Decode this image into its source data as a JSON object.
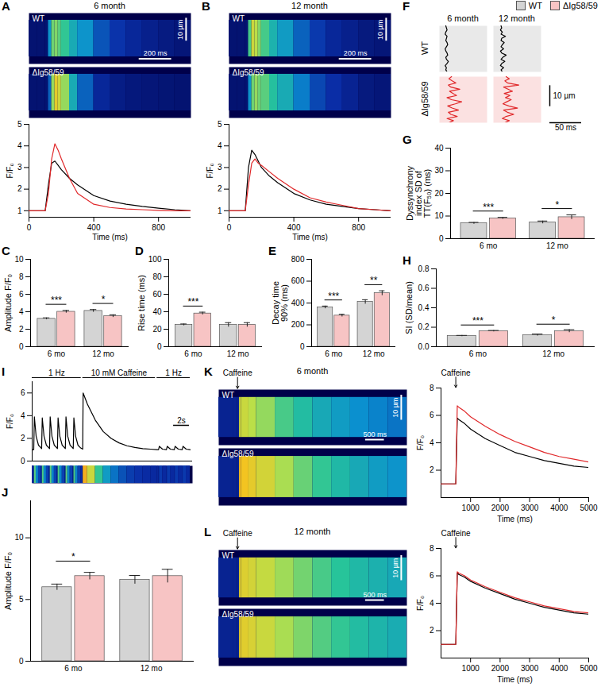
{
  "chart_data": [
    {
      "panel": "A",
      "type": "linescan",
      "title": "6 month",
      "scale_bars": {
        "x": "200 ms",
        "y": "10 µm"
      },
      "x_label": "Time (ms)",
      "y_label": "F/F₀",
      "xlim": [
        0,
        1000
      ],
      "xticks": [
        0,
        400,
        800
      ],
      "ylim": [
        0.7,
        5
      ],
      "yticks": [
        1,
        2,
        3,
        4,
        5
      ],
      "x": [
        0,
        50,
        100,
        120,
        140,
        160,
        180,
        200,
        250,
        300,
        400,
        500,
        600,
        700,
        800,
        900,
        1000
      ],
      "series": [
        {
          "name": "WT",
          "color": "#000000",
          "values": [
            1,
            1,
            1,
            2.2,
            3.2,
            3.3,
            3.1,
            2.9,
            2.5,
            2.2,
            1.7,
            1.45,
            1.3,
            1.2,
            1.12,
            1.05,
            1.0
          ]
        },
        {
          "name": "ΔIg58/59",
          "color": "#e0282a",
          "values": [
            1,
            1,
            1,
            1.8,
            3.4,
            4.1,
            3.8,
            3.4,
            2.5,
            1.8,
            1.3,
            1.15,
            1.08,
            1.05,
            1.02,
            1.0,
            1.0
          ]
        }
      ]
    },
    {
      "panel": "B",
      "type": "linescan",
      "title": "12 month",
      "scale_bars": {
        "x": "200 ms",
        "y": "10 µm"
      },
      "x_label": "Time (ms)",
      "y_label": "F/F₀",
      "xlim": [
        0,
        1000
      ],
      "xticks": [
        0,
        400,
        800
      ],
      "ylim": [
        0.7,
        5
      ],
      "yticks": [
        1,
        2,
        3,
        4,
        5
      ],
      "x": [
        0,
        50,
        100,
        120,
        140,
        160,
        180,
        200,
        250,
        300,
        400,
        500,
        600,
        700,
        800,
        900,
        1000
      ],
      "series": [
        {
          "name": "WT",
          "color": "#000000",
          "values": [
            1,
            1,
            1,
            3.0,
            3.8,
            3.6,
            3.3,
            3.0,
            2.6,
            2.3,
            1.8,
            1.5,
            1.3,
            1.2,
            1.1,
            1.05,
            1.0
          ]
        },
        {
          "name": "ΔIg58/59",
          "color": "#e0282a",
          "values": [
            1,
            1,
            1,
            2.2,
            3.2,
            3.4,
            3.2,
            3.1,
            2.8,
            2.5,
            2.0,
            1.6,
            1.4,
            1.25,
            1.1,
            1.05,
            1.0
          ]
        }
      ]
    },
    {
      "panel": "C",
      "type": "bar",
      "y_label": "Amplitude F/F₀",
      "categories": [
        "6 mo",
        "12 mo"
      ],
      "ylim": [
        0,
        10
      ],
      "yticks": [
        0,
        2,
        4,
        6,
        8,
        10
      ],
      "series": [
        {
          "name": "WT",
          "color": "#d4d4d4",
          "values": [
            3.2,
            4.1
          ],
          "errors": [
            0.1,
            0.15
          ]
        },
        {
          "name": "ΔIg58/59",
          "color": "#f7c4c4",
          "values": [
            4.0,
            3.5
          ],
          "errors": [
            0.15,
            0.15
          ]
        }
      ],
      "significance": [
        "***",
        "*"
      ]
    },
    {
      "panel": "D",
      "type": "bar",
      "y_label": "Rise time (ms)",
      "categories": [
        "6 mo",
        "12 mo"
      ],
      "ylim": [
        0,
        100
      ],
      "yticks": [
        0,
        20,
        40,
        60,
        80,
        100
      ],
      "series": [
        {
          "name": "WT",
          "color": "#d4d4d4",
          "values": [
            25,
            25
          ],
          "errors": [
            1,
            2.5
          ]
        },
        {
          "name": "ΔIg58/59",
          "color": "#f7c4c4",
          "values": [
            38,
            25
          ],
          "errors": [
            1.5,
            2.5
          ]
        }
      ],
      "significance": [
        "***",
        null
      ]
    },
    {
      "panel": "E",
      "type": "bar",
      "y_label": "Decay time 90% (ms)",
      "categories": [
        "6 mo",
        "12 mo"
      ],
      "ylim": [
        0,
        800
      ],
      "yticks": [
        0,
        200,
        400,
        600,
        800
      ],
      "series": [
        {
          "name": "WT",
          "color": "#d4d4d4",
          "values": [
            360,
            410
          ],
          "errors": [
            12,
            20
          ]
        },
        {
          "name": "ΔIg58/59",
          "color": "#f7c4c4",
          "values": [
            285,
            490
          ],
          "errors": [
            12,
            22
          ]
        }
      ],
      "significance": [
        "***",
        "**"
      ]
    },
    {
      "panel": "F",
      "type": "line",
      "columns": [
        "6 month",
        "12 month"
      ],
      "tick_labels": false,
      "scale_bars": {
        "x": "50 ms",
        "y": "10 µm"
      },
      "xlim": [
        0,
        75
      ],
      "ylim": [
        0,
        22
      ],
      "y": [
        0,
        1,
        2,
        3,
        4,
        5,
        6,
        7,
        8,
        9,
        10,
        11,
        12,
        13,
        14,
        15,
        16,
        17,
        18,
        19,
        20,
        21,
        22
      ],
      "series": [
        {
          "name": "WT",
          "color": "#000000",
          "values": [
            [
              12,
              10,
              11,
              9,
              12,
              14,
              11,
              10,
              13,
              12,
              10,
              9,
              11,
              13,
              12,
              10,
              11,
              12,
              9,
              10,
              12,
              11,
              10
            ],
            [
              14,
              12,
              16,
              11,
              13,
              18,
              12,
              15,
              20,
              13,
              11,
              16,
              12,
              14,
              17,
              12,
              13,
              19,
              12,
              14,
              11,
              13,
              12
            ]
          ]
        },
        {
          "name": "ΔIg58/59",
          "color": "#e0282a",
          "values": [
            [
              15,
              22,
              12,
              28,
              18,
              14,
              30,
              20,
              13,
              25,
              35,
              19,
              12,
              27,
              21,
              16,
              32,
              18,
              14,
              26,
              20,
              15,
              19
            ],
            [
              18,
              25,
              14,
              20,
              32,
              22,
              16,
              38,
              24,
              15,
              21,
              28,
              19,
              26,
              17,
              30,
              23,
              16,
              40,
              22,
              18,
              25,
              20
            ]
          ]
        }
      ]
    },
    {
      "panel": "G",
      "type": "bar",
      "legend": "top-right",
      "y_label": "Dyssynchrony index SD of TT(F₅₀) (ms)",
      "categories": [
        "6 mo",
        "12 mo"
      ],
      "ylim": [
        0,
        40
      ],
      "yticks": [
        0,
        10,
        20,
        30,
        40
      ],
      "series": [
        {
          "name": "WT",
          "color": "#d4d4d4",
          "values": [
            6.8,
            7.2
          ],
          "errors": [
            0.4,
            0.6
          ]
        },
        {
          "name": "ΔIg58/59",
          "color": "#f7c4c4",
          "values": [
            9.0,
            9.5
          ],
          "errors": [
            0.4,
            1.0
          ]
        }
      ],
      "significance": [
        "***",
        "*"
      ]
    },
    {
      "panel": "H",
      "type": "bar",
      "y_label": "SI (SD/mean)",
      "categories": [
        "6 mo",
        "12 mo"
      ],
      "ylim": [
        0,
        0.8
      ],
      "yticks": [
        {
          "value": 0,
          "label": "0.0"
        },
        0.2,
        0.4,
        0.6,
        0.8
      ],
      "series": [
        {
          "name": "WT",
          "color": "#d4d4d4",
          "values": [
            0.11,
            0.12
          ],
          "errors": [
            0.006,
            0.01
          ]
        },
        {
          "name": "ΔIg58/59",
          "color": "#f7c4c4",
          "values": [
            0.16,
            0.16
          ],
          "errors": [
            0.007,
            0.015
          ]
        }
      ],
      "significance": [
        "***",
        "*"
      ]
    },
    {
      "panel": "I",
      "type": "line",
      "tick_labels": "y",
      "y_label": "F/F₀",
      "scale_bar": "2s",
      "protocol": [
        {
          "label": "1 Hz",
          "start": 0,
          "end": 6.2
        },
        {
          "label": "10 mM Caffeine",
          "start": 6.4,
          "end": 15.6
        },
        {
          "label": "1 Hz",
          "start": 15.8,
          "end": 20
        }
      ],
      "xlim": [
        0,
        20.3
      ],
      "ylim": [
        0,
        7
      ],
      "yticks": [
        0,
        2,
        4,
        6
      ],
      "color": "#000000",
      "x": [
        0,
        0.2,
        0.28,
        0.5,
        0.8,
        1.15,
        1.2,
        1.28,
        1.5,
        1.8,
        2.15,
        2.2,
        2.28,
        2.5,
        2.8,
        3.15,
        3.2,
        3.28,
        3.5,
        3.8,
        4.15,
        4.2,
        4.28,
        4.5,
        4.8,
        5.15,
        5.2,
        5.28,
        5.5,
        5.8,
        6.15,
        6.4,
        6.45,
        7,
        8,
        9,
        10,
        11,
        12,
        13,
        14,
        15,
        15.8,
        16,
        16.1,
        16.5,
        17,
        17.1,
        17.5,
        18,
        18.1,
        18.5,
        19,
        19.1,
        19.5,
        20
      ],
      "values": [
        1.0,
        1.0,
        3.9,
        2.2,
        1.4,
        1.15,
        1.1,
        3.8,
        2.2,
        1.4,
        1.15,
        1.1,
        3.9,
        2.2,
        1.4,
        1.15,
        1.1,
        3.8,
        2.2,
        1.4,
        1.15,
        1.1,
        3.9,
        2.2,
        1.4,
        1.15,
        1.1,
        3.8,
        2.2,
        1.4,
        1.15,
        1.05,
        6.0,
        5.0,
        3.6,
        2.6,
        2.0,
        1.6,
        1.35,
        1.2,
        1.1,
        1.05,
        1.0,
        1.0,
        1.3,
        1.05,
        1.0,
        1.3,
        1.05,
        1.0,
        1.3,
        1.05,
        1.0,
        1.3,
        1.05,
        1.0
      ]
    },
    {
      "panel": "J",
      "type": "bar",
      "y_label": "Amplitude F/F₀",
      "categories": [
        "6 mo",
        "12 mo"
      ],
      "ylim": [
        0,
        13
      ],
      "yticks": [
        0,
        5,
        10
      ],
      "series": [
        {
          "name": "WT",
          "color": "#d4d4d4",
          "values": [
            6.0,
            6.6
          ],
          "errors": [
            0.25,
            0.35
          ]
        },
        {
          "name": "ΔIg58/59",
          "color": "#f7c4c4",
          "values": [
            6.9,
            6.9
          ],
          "errors": [
            0.3,
            0.55
          ]
        }
      ],
      "significance": [
        "*",
        null
      ]
    },
    {
      "panel": "K",
      "type": "linescan",
      "title": "6 month",
      "annotation": {
        "text": "Caffeine",
        "x": 500
      },
      "scale_bars": {
        "x": "500 ms",
        "y": "10 µm"
      },
      "x_label": "Time (ms)",
      "y_label": "F/F₀",
      "xlim": [
        0,
        5000
      ],
      "xticks": [
        1000,
        2000,
        3000,
        4000,
        5000
      ],
      "ylim": [
        0,
        8
      ],
      "yticks": [
        2,
        4,
        6,
        8
      ],
      "x": [
        0,
        400,
        500,
        550,
        600,
        800,
        1000,
        1500,
        2000,
        2500,
        3000,
        3500,
        4000,
        4500,
        5000
      ],
      "series": [
        {
          "name": "WT",
          "color": "#000000",
          "values": [
            1,
            1,
            1,
            5.8,
            5.7,
            5.4,
            5.0,
            4.3,
            3.8,
            3.3,
            3.0,
            2.7,
            2.5,
            2.3,
            2.2
          ]
        },
        {
          "name": "ΔIg58/59",
          "color": "#e0282a",
          "values": [
            1,
            1,
            1,
            6.7,
            6.6,
            6.3,
            5.9,
            5.2,
            4.6,
            4.1,
            3.7,
            3.3,
            3.0,
            2.8,
            2.6
          ]
        }
      ]
    },
    {
      "panel": "L",
      "type": "linescan",
      "title": "12 month",
      "annotation": {
        "text": "Caffeine",
        "x": 500
      },
      "scale_bars": {
        "x": "500 ms",
        "y": "10 µm"
      },
      "x_label": "Time (ms)",
      "y_label": "F/F₀",
      "xlim": [
        0,
        5000
      ],
      "xticks": [
        1000,
        2000,
        3000,
        4000,
        5000
      ],
      "ylim": [
        0,
        8
      ],
      "yticks": [
        2,
        4,
        6,
        8
      ],
      "x": [
        0,
        400,
        500,
        550,
        600,
        800,
        1000,
        1500,
        2000,
        2500,
        3000,
        3500,
        4000,
        4500,
        5000
      ],
      "series": [
        {
          "name": "WT",
          "color": "#000000",
          "values": [
            1,
            1,
            1,
            6.2,
            6.1,
            5.9,
            5.6,
            5.1,
            4.7,
            4.3,
            4.0,
            3.7,
            3.5,
            3.3,
            3.2
          ]
        },
        {
          "name": "ΔIg58/59",
          "color": "#e0282a",
          "values": [
            1,
            1,
            1,
            6.3,
            6.2,
            6.0,
            5.7,
            5.2,
            4.8,
            4.4,
            4.1,
            3.8,
            3.6,
            3.4,
            3.3
          ]
        }
      ]
    }
  ]
}
